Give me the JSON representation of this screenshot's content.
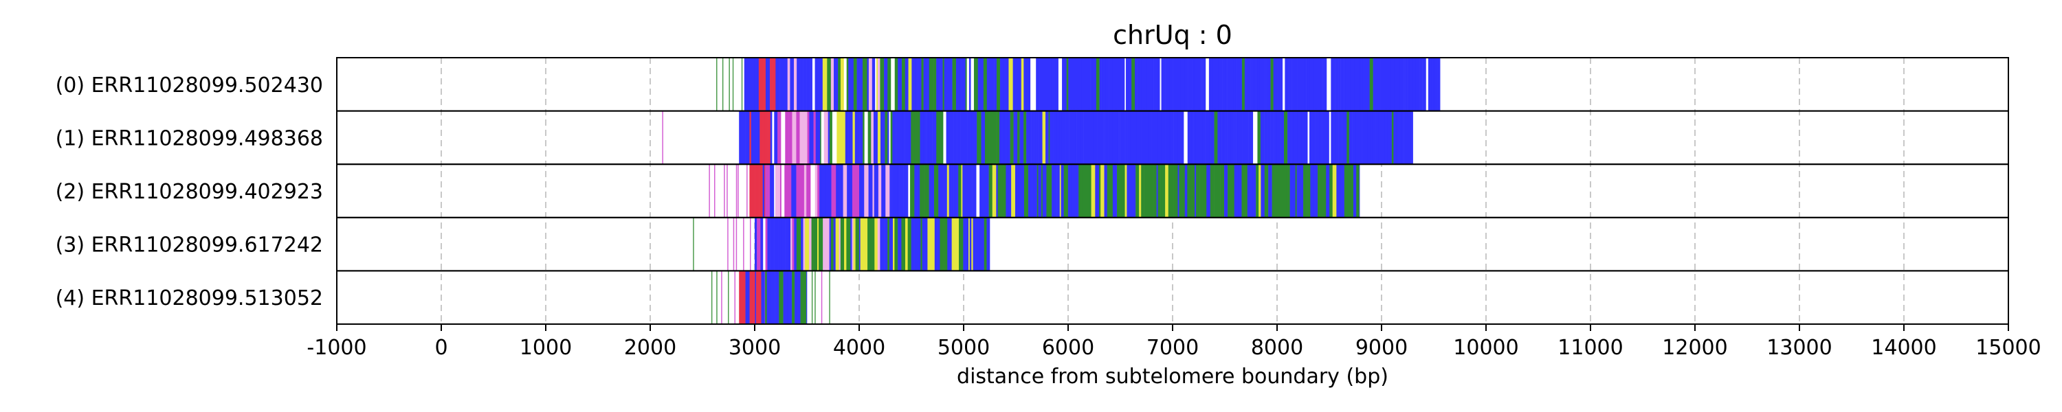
{
  "chart_data": {
    "type": "bar",
    "title": "chrUq : 0",
    "xlabel": "distance from subtelomere boundary (bp)",
    "ylabel": "",
    "xlim": [
      -1000,
      15000
    ],
    "xticks": [
      -1000,
      0,
      1000,
      2000,
      3000,
      4000,
      5000,
      6000,
      7000,
      8000,
      9000,
      10000,
      11000,
      12000,
      13000,
      14000,
      15000
    ],
    "tick_labels": [
      "-1000",
      "0",
      "1000",
      "2000",
      "3000",
      "4000",
      "5000",
      "6000",
      "7000",
      "8000",
      "9000",
      "10000",
      "11000",
      "12000",
      "13000",
      "14000",
      "15000"
    ],
    "grid": "vertical dashed",
    "colors": {
      "blue": "#3333ff",
      "green": "#2e8b2e",
      "red": "#e8334a",
      "magenta": "#cc44cc",
      "yellow": "#e6e640",
      "pink": "#f0b4e6",
      "grid": "#c8c8c8",
      "frame": "#000000"
    },
    "reads": [
      {
        "label": "(0) ERR11028099.502430",
        "start": 2600,
        "end": 9560,
        "segments": [
          {
            "from": 2600,
            "to": 2900,
            "pattern": "green-ticks"
          },
          {
            "from": 2900,
            "to": 3000,
            "pattern": "blue"
          },
          {
            "from": 3000,
            "to": 3200,
            "pattern": "red"
          },
          {
            "from": 3200,
            "to": 3650,
            "pattern": "blue-magenta"
          },
          {
            "from": 3650,
            "to": 4200,
            "pattern": "mixed-yellow"
          },
          {
            "from": 4200,
            "to": 5600,
            "pattern": "blue-green"
          },
          {
            "from": 5600,
            "to": 9560,
            "pattern": "blue"
          }
        ]
      },
      {
        "label": "(1) ERR11028099.498368",
        "start": 2100,
        "end": 9300,
        "segments": [
          {
            "from": 2100,
            "to": 2130,
            "pattern": "green-ticks"
          },
          {
            "from": 2850,
            "to": 2950,
            "pattern": "blue"
          },
          {
            "from": 2950,
            "to": 3150,
            "pattern": "red"
          },
          {
            "from": 3150,
            "to": 3600,
            "pattern": "magenta-pink"
          },
          {
            "from": 3600,
            "to": 4300,
            "pattern": "mixed-yellow"
          },
          {
            "from": 4300,
            "to": 5800,
            "pattern": "blue-green"
          },
          {
            "from": 5800,
            "to": 9300,
            "pattern": "blue"
          }
        ]
      },
      {
        "label": "(2) ERR11028099.402923",
        "start": 2550,
        "end": 8790,
        "segments": [
          {
            "from": 2550,
            "to": 2950,
            "pattern": "magenta-ticks"
          },
          {
            "from": 2950,
            "to": 3100,
            "pattern": "red"
          },
          {
            "from": 3100,
            "to": 3600,
            "pattern": "magenta-pink"
          },
          {
            "from": 3600,
            "to": 4300,
            "pattern": "blue-magenta"
          },
          {
            "from": 4300,
            "to": 6100,
            "pattern": "blue-green"
          },
          {
            "from": 6100,
            "to": 8790,
            "pattern": "green-blue"
          }
        ]
      },
      {
        "label": "(3) ERR11028099.617242",
        "start": 2400,
        "end": 5250,
        "segments": [
          {
            "from": 2400,
            "to": 2430,
            "pattern": "green-ticks"
          },
          {
            "from": 2700,
            "to": 3000,
            "pattern": "magenta-ticks"
          },
          {
            "from": 3000,
            "to": 3400,
            "pattern": "blue-magenta"
          },
          {
            "from": 3400,
            "to": 4200,
            "pattern": "mixed-yellow"
          },
          {
            "from": 4200,
            "to": 5250,
            "pattern": "blue-yellow"
          }
        ]
      },
      {
        "label": "(4) ERR11028099.513052",
        "start": 2550,
        "end": 3740,
        "segments": [
          {
            "from": 2550,
            "to": 2850,
            "pattern": "green-ticks"
          },
          {
            "from": 2850,
            "to": 3100,
            "pattern": "red"
          },
          {
            "from": 3100,
            "to": 3500,
            "pattern": "blue-green"
          },
          {
            "from": 3500,
            "to": 3740,
            "pattern": "green-ticks"
          }
        ]
      }
    ]
  }
}
